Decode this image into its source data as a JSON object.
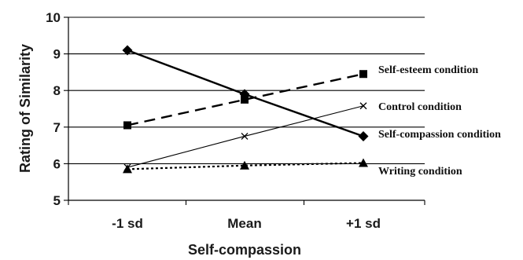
{
  "chart_data": {
    "type": "line",
    "title": "",
    "xlabel": "Self-compassion",
    "ylabel": "Rating of Similarity",
    "categories": [
      "-1 sd",
      "Mean",
      "+1 sd"
    ],
    "ylim": [
      5,
      10
    ],
    "yticks": [
      "5",
      "6",
      "7",
      "8",
      "9",
      "10"
    ],
    "grid": "horizontal",
    "legend": "labels at line ends (right)",
    "series": [
      {
        "name": "Self-esteem condition",
        "values": [
          7.05,
          7.75,
          8.45
        ],
        "marker": "square",
        "line": "long-dash",
        "line_weight": "heavy"
      },
      {
        "name": "Control condition",
        "values": [
          5.9,
          6.75,
          7.58
        ],
        "marker": "x",
        "line": "solid",
        "line_weight": "thin"
      },
      {
        "name": "Self-compassion condition",
        "values": [
          9.1,
          7.9,
          6.75
        ],
        "marker": "diamond",
        "line": "solid",
        "line_weight": "heavy"
      },
      {
        "name": "Writing condition",
        "values": [
          5.85,
          5.95,
          6.02
        ],
        "marker": "triangle",
        "line": "dotted",
        "line_weight": "medium"
      }
    ],
    "colors": {
      "lines": "#000000",
      "gridlines": "#000000"
    }
  }
}
